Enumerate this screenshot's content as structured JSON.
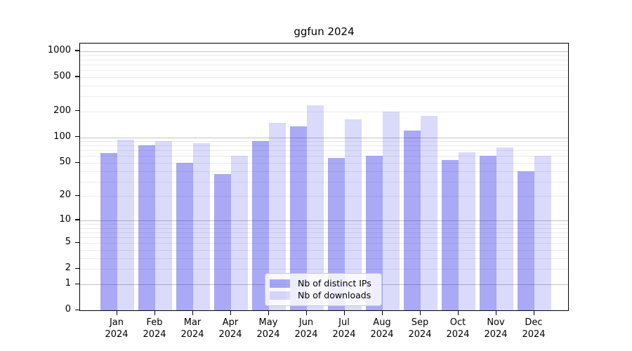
{
  "title": "ggfun 2024",
  "colors": {
    "bar_distinct_ips": "rgba(10,10,230,0.35)",
    "bar_downloads": "rgba(10,10,230,0.15)",
    "major_grid": "#c4c4c4",
    "minor_grid": "#ebebeb",
    "axis": "#000000"
  },
  "legend": {
    "position": "lower center",
    "items": [
      {
        "label": "Nb of distinct IPs",
        "color": "rgba(10,10,230,0.35)"
      },
      {
        "label": "Nb of downloads",
        "color": "rgba(10,10,230,0.15)"
      }
    ]
  },
  "chart_data": {
    "type": "bar",
    "title": "ggfun 2024",
    "categories": [
      "Jan 2024",
      "Feb 2024",
      "Mar 2024",
      "Apr 2024",
      "May 2024",
      "Jun 2024",
      "Jul 2024",
      "Aug 2024",
      "Sep 2024",
      "Oct 2024",
      "Nov 2024",
      "Dec 2024"
    ],
    "series": [
      {
        "name": "Nb of distinct IPs",
        "color": "rgba(10,10,230,0.35)",
        "values": [
          65,
          80,
          50,
          37,
          90,
          135,
          57,
          61,
          120,
          54,
          61,
          40
        ]
      },
      {
        "name": "Nb of downloads",
        "color": "rgba(10,10,230,0.15)",
        "values": [
          93,
          90,
          85,
          60,
          148,
          235,
          162,
          200,
          178,
          67,
          76,
          60
        ]
      }
    ],
    "y_axis": {
      "scale": "log1p",
      "ticks": [
        0,
        1,
        2,
        5,
        10,
        20,
        50,
        100,
        200,
        500,
        1000
      ],
      "major_gridlines": [
        1,
        10,
        100,
        1000
      ],
      "ylim": [
        0,
        1230
      ]
    },
    "xlabel": "",
    "ylabel": "",
    "grid": true,
    "legend_position": "lower center"
  }
}
